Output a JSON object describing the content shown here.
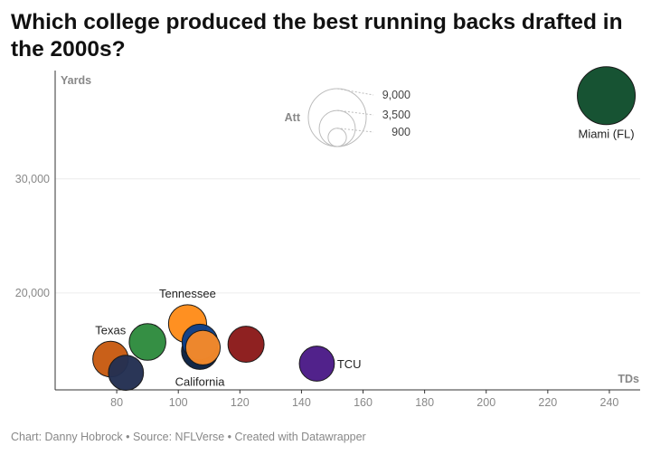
{
  "chart_data": {
    "type": "scatter",
    "title": "Which college produced the best running backs drafted in the 2000s?",
    "xlabel": "TDs",
    "ylabel": "Yards",
    "xlim": [
      60,
      250
    ],
    "ylim": [
      11500,
      39500
    ],
    "xticks": [
      80,
      100,
      120,
      140,
      160,
      180,
      200,
      220,
      240
    ],
    "yticks": [
      20000,
      30000
    ],
    "ytick_labels": [
      "20,000",
      "30,000"
    ],
    "size_legend": {
      "title": "Att",
      "entries": [
        {
          "label": "9,000",
          "value": 9000
        },
        {
          "label": "3,500",
          "value": 3500
        },
        {
          "label": "900",
          "value": 900
        }
      ]
    },
    "points": [
      {
        "label": "",
        "x": 90,
        "y": 15700,
        "att": 3600,
        "color": "#2e8b3e"
      },
      {
        "label": "",
        "x": 122,
        "y": 15500,
        "att": 3500,
        "color": "#8b1a1a"
      },
      {
        "label": "",
        "x": 107,
        "y": 15700,
        "att": 3400,
        "color": "#0c3f8a"
      },
      {
        "label": "",
        "x": 108,
        "y": 15200,
        "att": 3200,
        "color": "#f5892a"
      },
      {
        "label": "Tennessee",
        "x": 103,
        "y": 17300,
        "att": 3900,
        "color": "#ff8c1a"
      },
      {
        "label": "Texas",
        "x": 78,
        "y": 14200,
        "att": 3400,
        "color": "#c75b12"
      },
      {
        "label": "",
        "x": 83,
        "y": 13000,
        "att": 3300,
        "color": "#232f52"
      },
      {
        "label": "California",
        "x": 107,
        "y": 14900,
        "att": 3600,
        "color": "#0a2040"
      },
      {
        "label": "TCU",
        "x": 145,
        "y": 13800,
        "att": 3300,
        "color": "#4b1b87"
      },
      {
        "label": "Miami (FL)",
        "x": 239,
        "y": 37300,
        "att": 9000,
        "color": "#0f4d2c"
      }
    ]
  },
  "footer": "Chart: Danny Hobrock • Source: NFLVerse • Created with Datawrapper"
}
